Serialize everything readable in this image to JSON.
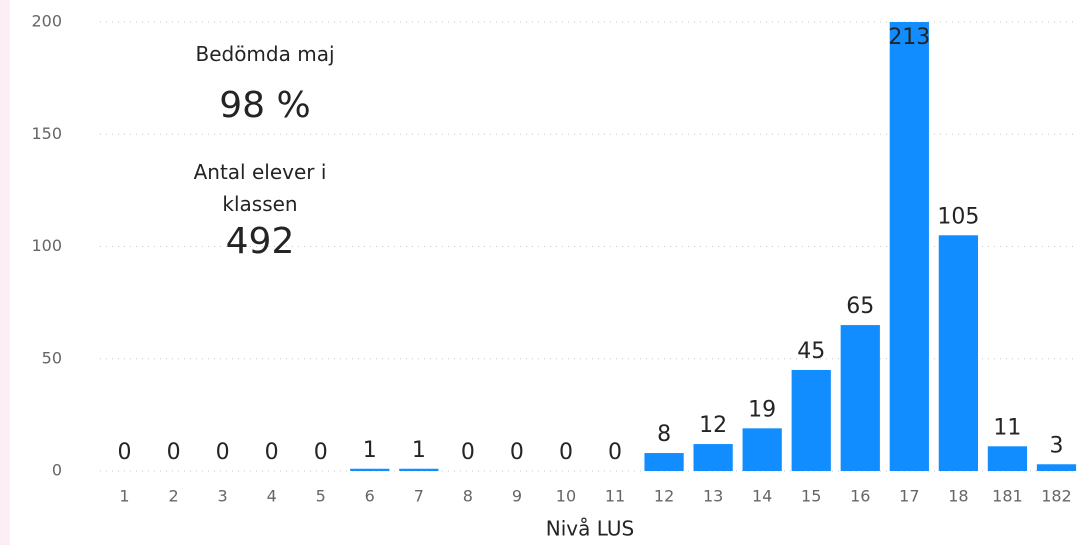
{
  "chart_data": {
    "type": "bar",
    "x_label": "Nivå LUS",
    "categories": [
      "1",
      "2",
      "3",
      "4",
      "5",
      "6",
      "7",
      "8",
      "9",
      "10",
      "11",
      "12",
      "13",
      "14",
      "15",
      "16",
      "17",
      "18",
      "181",
      "182"
    ],
    "values": [
      0,
      0,
      0,
      0,
      0,
      1,
      1,
      0,
      0,
      0,
      0,
      8,
      12,
      19,
      45,
      65,
      213,
      105,
      11,
      3
    ],
    "color": "#118dff",
    "ylim": [
      0,
      200
    ],
    "yticks": [
      0,
      50,
      100,
      150,
      200
    ],
    "grid": true,
    "cards": [
      {
        "label": "Bedömda maj",
        "value": "98 %"
      },
      {
        "label": "Antal elever i klassen",
        "value": "492"
      }
    ]
  }
}
